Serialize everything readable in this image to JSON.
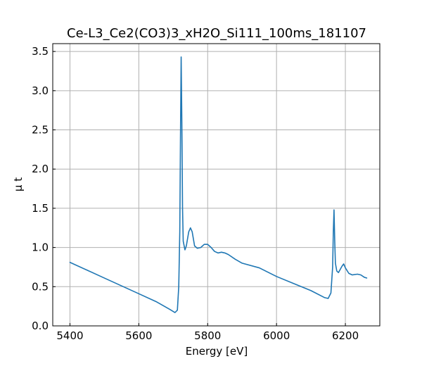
{
  "chart_data": {
    "type": "line",
    "title": "Ce-L3_Ce2(CO3)3_xH2O_Si111_100ms_181107",
    "xlabel": "Energy [eV]",
    "ylabel": "μ t",
    "xlim": [
      5350,
      6300
    ],
    "ylim": [
      0.0,
      3.6
    ],
    "grid": true,
    "ticks_direction": "in",
    "x_ticks": [
      {
        "value": 5400,
        "label": "5400"
      },
      {
        "value": 5600,
        "label": "5600"
      },
      {
        "value": 5800,
        "label": "5800"
      },
      {
        "value": 6000,
        "label": "6000"
      },
      {
        "value": 6200,
        "label": "6200"
      }
    ],
    "y_ticks": [
      {
        "value": 0.0,
        "label": "0.0"
      },
      {
        "value": 0.5,
        "label": "0.5"
      },
      {
        "value": 1.0,
        "label": "1.0"
      },
      {
        "value": 1.5,
        "label": "1.5"
      },
      {
        "value": 2.0,
        "label": "2.0"
      },
      {
        "value": 2.5,
        "label": "2.5"
      },
      {
        "value": 3.0,
        "label": "3.0"
      },
      {
        "value": 3.5,
        "label": "3.5"
      }
    ],
    "series": [
      {
        "color": "#1f77b4",
        "points": [
          [
            5400,
            0.81
          ],
          [
            5450,
            0.71
          ],
          [
            5500,
            0.61
          ],
          [
            5550,
            0.51
          ],
          [
            5600,
            0.41
          ],
          [
            5650,
            0.31
          ],
          [
            5690,
            0.21
          ],
          [
            5705,
            0.17
          ],
          [
            5712,
            0.2
          ],
          [
            5716,
            0.5
          ],
          [
            5719,
            1.2
          ],
          [
            5721,
            2.4
          ],
          [
            5723,
            3.43
          ],
          [
            5725,
            2.6
          ],
          [
            5727,
            1.5
          ],
          [
            5729,
            1.08
          ],
          [
            5734,
            0.97
          ],
          [
            5738,
            1.02
          ],
          [
            5745,
            1.2
          ],
          [
            5750,
            1.25
          ],
          [
            5755,
            1.2
          ],
          [
            5762,
            1.02
          ],
          [
            5770,
            0.99
          ],
          [
            5780,
            1.0
          ],
          [
            5790,
            1.04
          ],
          [
            5800,
            1.04
          ],
          [
            5810,
            1.0
          ],
          [
            5820,
            0.95
          ],
          [
            5830,
            0.93
          ],
          [
            5840,
            0.94
          ],
          [
            5850,
            0.93
          ],
          [
            5860,
            0.91
          ],
          [
            5880,
            0.85
          ],
          [
            5900,
            0.8
          ],
          [
            5950,
            0.74
          ],
          [
            6000,
            0.63
          ],
          [
            6050,
            0.54
          ],
          [
            6100,
            0.45
          ],
          [
            6140,
            0.36
          ],
          [
            6150,
            0.35
          ],
          [
            6158,
            0.42
          ],
          [
            6163,
            0.75
          ],
          [
            6165,
            1.2
          ],
          [
            6167,
            1.48
          ],
          [
            6169,
            1.1
          ],
          [
            6171,
            0.8
          ],
          [
            6175,
            0.7
          ],
          [
            6180,
            0.68
          ],
          [
            6190,
            0.76
          ],
          [
            6195,
            0.79
          ],
          [
            6200,
            0.74
          ],
          [
            6210,
            0.67
          ],
          [
            6220,
            0.65
          ],
          [
            6235,
            0.66
          ],
          [
            6245,
            0.65
          ],
          [
            6255,
            0.62
          ],
          [
            6262,
            0.61
          ]
        ]
      }
    ]
  }
}
